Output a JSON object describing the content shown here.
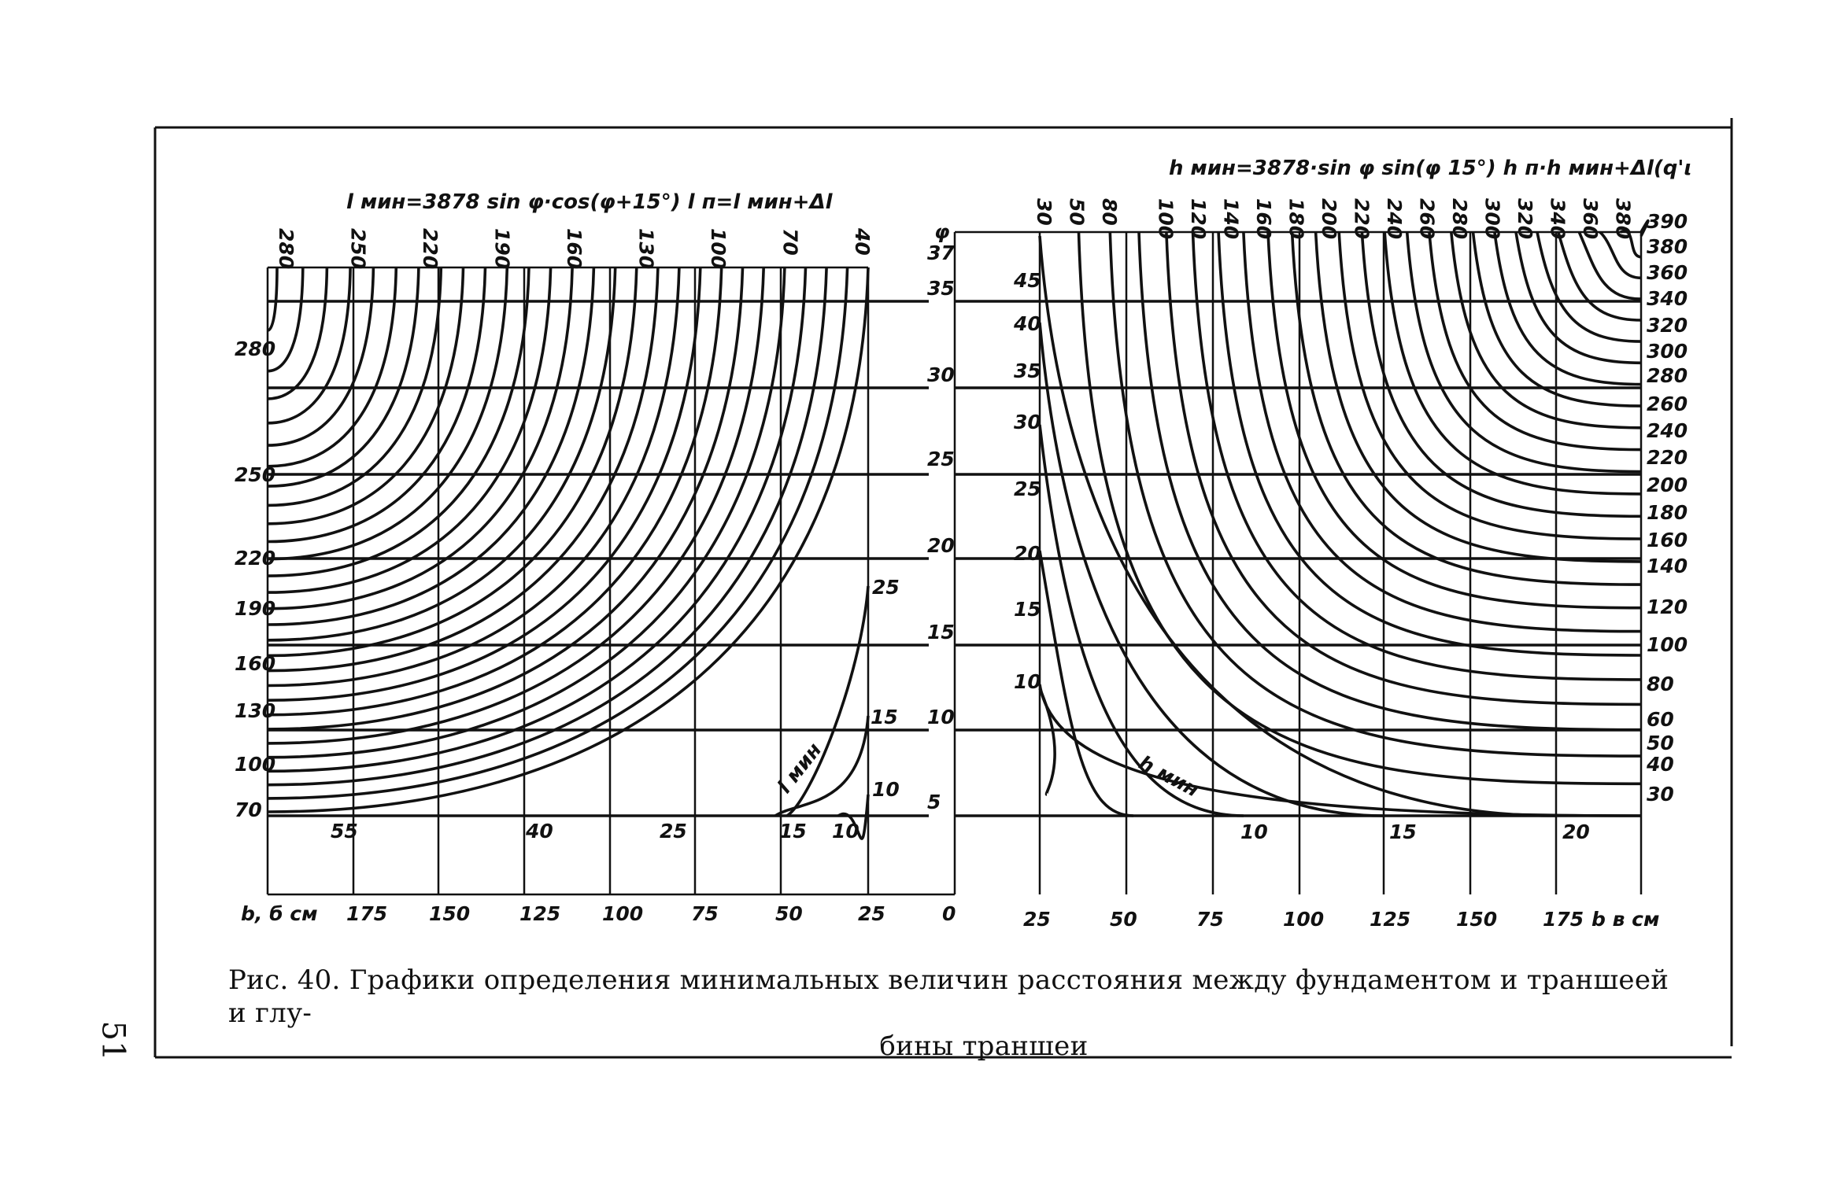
{
  "page": {
    "number": "51"
  },
  "caption": {
    "line1": "Рис. 40. Графики определения минимальных величин расстояния между фундаментом и траншеей и глу-",
    "line2": "бины траншеи"
  },
  "chart_data": {
    "type": "line",
    "left_panel": {
      "formula": "l мин=3878 sin φ·cos(φ+15°)   l п=l мин+Δl",
      "top_labels": [
        "280",
        "250",
        "220",
        "190",
        "160",
        "130",
        "100",
        "70",
        "40"
      ],
      "left_labels": [
        "280",
        "250",
        "220",
        "190",
        "160",
        "130",
        "100",
        "70"
      ],
      "bottom_curve_labels": [
        "55",
        "40",
        "25",
        "15",
        "10"
      ],
      "inner_labels": [
        "25",
        "15",
        "10"
      ],
      "curve_label": "l мин",
      "x_axis_label": "b, б см",
      "x_ticks": [
        "175",
        "150",
        "125",
        "100",
        "75",
        "50",
        "25",
        "0"
      ]
    },
    "phi_axis": {
      "symbol": "φ",
      "ticks": [
        "37",
        "35",
        "30",
        "25",
        "20",
        "15",
        "10",
        "5"
      ],
      "right_ticks": [
        "45",
        "40",
        "35",
        "30",
        "25",
        "20",
        "15",
        "10"
      ]
    },
    "right_panel": {
      "formula": "h мин=3878·sin φ  sin(φ 15°)  h п·h мин+Δl(q'ι",
      "top_labels": [
        "30",
        "50",
        "80",
        "100",
        "120",
        "140",
        "160",
        "180",
        "200",
        "220",
        "240",
        "260",
        "280",
        "300",
        "320",
        "340",
        "360",
        "380"
      ],
      "right_labels": [
        "390",
        "380",
        "360",
        "340",
        "320",
        "300",
        "280",
        "260",
        "240",
        "220",
        "200",
        "180",
        "160",
        "140",
        "120",
        "100",
        "80",
        "60",
        "50",
        "40",
        "30"
      ],
      "bottom_curve_labels": [
        "10",
        "15",
        "20"
      ],
      "curve_label": "h мин",
      "x_axis_label": "b в см",
      "x_ticks": [
        "25",
        "50",
        "75",
        "100",
        "125",
        "150",
        "175"
      ]
    }
  }
}
